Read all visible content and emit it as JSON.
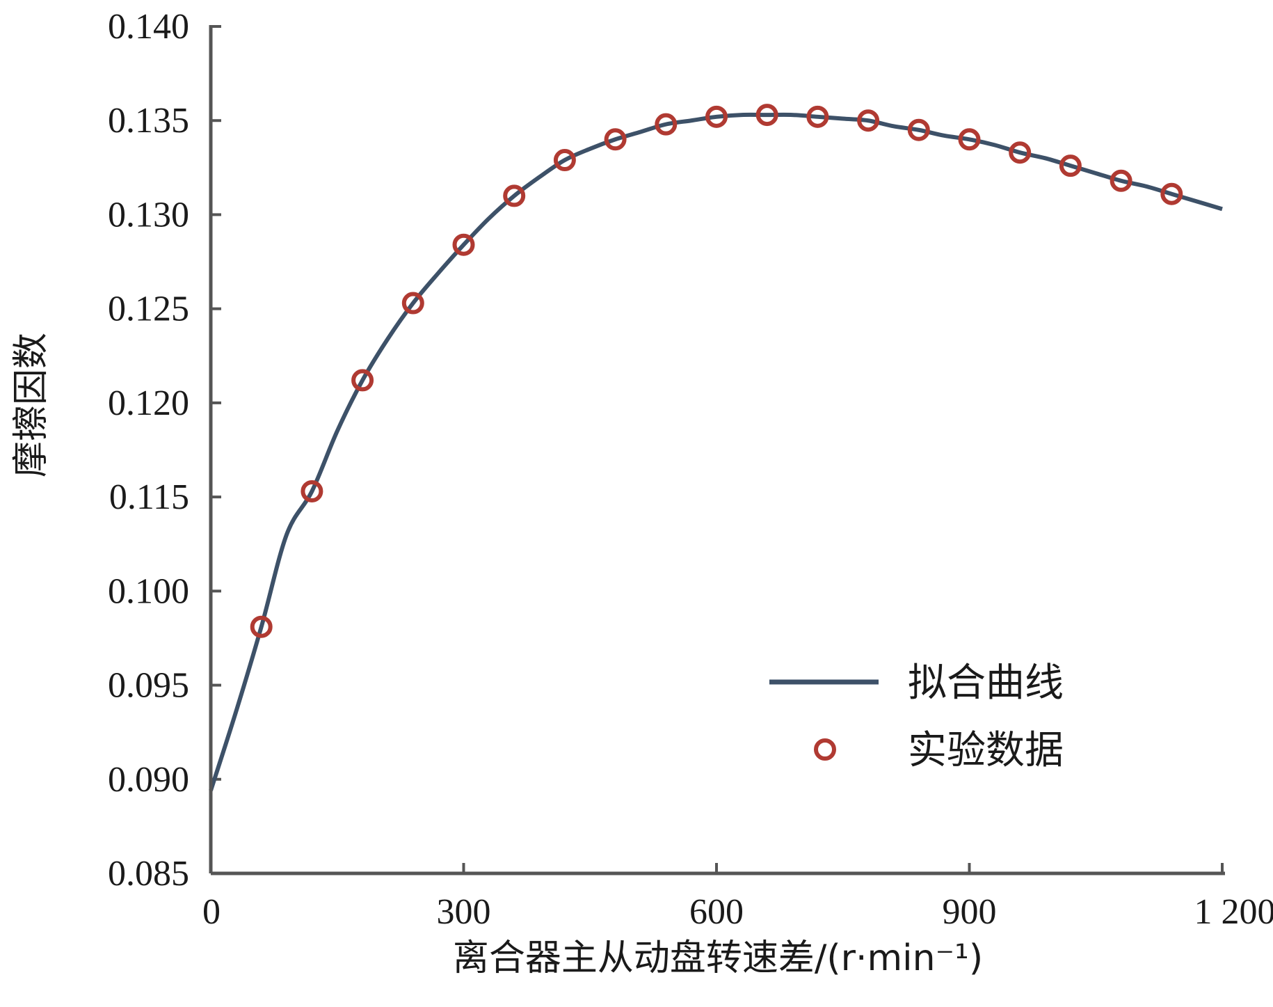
{
  "chart_data": {
    "type": "line",
    "title": "",
    "xlabel": "离合器主从动盘转速差/(r·min⁻¹)",
    "ylabel": "摩擦因数",
    "xlim": [
      0,
      1200
    ],
    "ylim": [
      0.085,
      0.14
    ],
    "x_ticks": [
      0,
      300,
      600,
      900,
      1200
    ],
    "x_tick_labels": [
      "0",
      "300",
      "600",
      "900",
      "1 200"
    ],
    "y_ticks": [
      0.085,
      0.09,
      0.095,
      0.1,
      0.115,
      0.12,
      0.125,
      0.13,
      0.135,
      0.14
    ],
    "y_tick_labels": [
      "0.085",
      "0.090",
      "0.095",
      "0.100",
      "0.115",
      "0.120",
      "0.125",
      "0.130",
      "0.135",
      "0.140"
    ],
    "grid": false,
    "legend_position": "bottom-right",
    "colors": {
      "fit_line": "#3d5168",
      "markers": "#b03a32",
      "axis": "#555555"
    },
    "series": [
      {
        "name": "拟合曲线",
        "kind": "line",
        "x": [
          0,
          30,
          60,
          90,
          120,
          150,
          180,
          210,
          240,
          270,
          300,
          330,
          360,
          390,
          420,
          450,
          480,
          510,
          540,
          570,
          600,
          630,
          660,
          690,
          720,
          750,
          780,
          810,
          840,
          870,
          900,
          930,
          960,
          990,
          1020,
          1050,
          1080,
          1110,
          1140,
          1170,
          1200
        ],
        "y": [
          0.0894,
          0.0936,
          0.0981,
          0.109,
          0.1153,
          0.1185,
          0.1212,
          0.1234,
          0.1253,
          0.1269,
          0.1284,
          0.1298,
          0.131,
          0.132,
          0.1329,
          0.1335,
          0.134,
          0.1344,
          0.1348,
          0.135,
          0.1352,
          0.1353,
          0.1353,
          0.1353,
          0.1352,
          0.1351,
          0.135,
          0.1347,
          0.1345,
          0.1342,
          0.134,
          0.1337,
          0.1333,
          0.133,
          0.1326,
          0.1322,
          0.1318,
          0.1315,
          0.1311,
          0.1307,
          0.1303
        ]
      },
      {
        "name": "实验数据",
        "kind": "scatter",
        "x": [
          60,
          120,
          180,
          240,
          300,
          360,
          420,
          480,
          540,
          600,
          660,
          720,
          780,
          840,
          900,
          960,
          1020,
          1080,
          1140
        ],
        "y": [
          0.0981,
          0.1153,
          0.1212,
          0.1253,
          0.1284,
          0.131,
          0.1329,
          0.134,
          0.1348,
          0.1352,
          0.1353,
          0.1352,
          0.135,
          0.1345,
          0.134,
          0.1333,
          0.1326,
          0.1318,
          0.1311
        ]
      }
    ]
  }
}
